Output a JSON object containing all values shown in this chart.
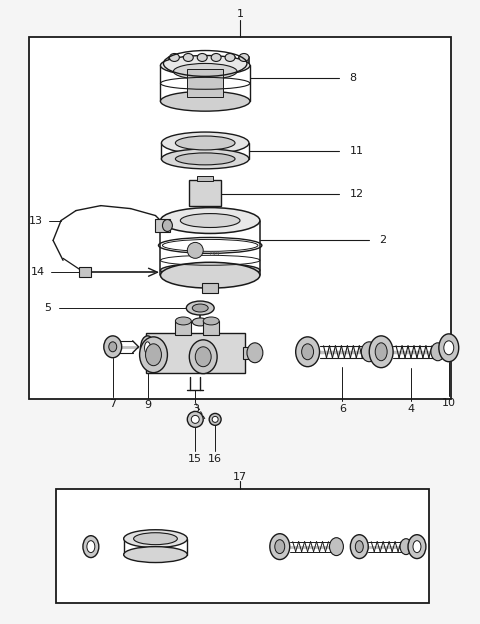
{
  "bg_color": "#f5f5f5",
  "line_color": "#1a1a1a",
  "fig_width": 4.8,
  "fig_height": 6.24,
  "dpi": 100
}
